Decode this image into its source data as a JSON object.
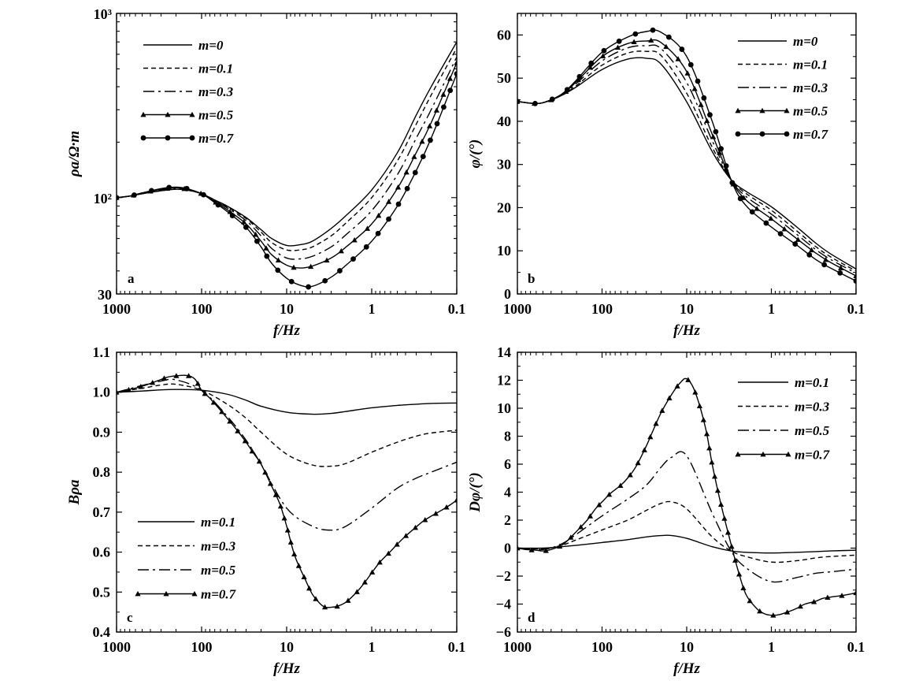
{
  "chart_data": [
    {
      "type": "line",
      "panel_label": "a",
      "xlabel": "f/Hz",
      "ylabel": "ρa/Ω·m",
      "x_scale": "log",
      "x_reversed": true,
      "xlim": [
        1000,
        0.1
      ],
      "y_scale": "log",
      "ylim": [
        30,
        1000
      ],
      "x_tick_labels": [
        "1000",
        "100",
        "10",
        "1",
        "0.1"
      ],
      "y_tick_labels": [
        "30",
        "10²",
        "10³"
      ],
      "legend_position": "top-left",
      "series": [
        {
          "name": "m=0",
          "style": "solid",
          "marker": "none",
          "x": [
            1000,
            700,
            500,
            300,
            200,
            150,
            100,
            70,
            50,
            30,
            20,
            15,
            10,
            7,
            5,
            3,
            2,
            1,
            0.5,
            0.3,
            0.2,
            0.1
          ],
          "y": [
            100,
            102,
            105,
            109,
            111,
            110,
            105,
            97,
            90,
            78,
            67,
            60,
            55,
            55.5,
            58,
            68,
            80,
            110,
            175,
            280,
            400,
            700
          ]
        },
        {
          "name": "m=0.1",
          "style": "dashed",
          "marker": "none",
          "x": [
            1000,
            700,
            500,
            300,
            200,
            150,
            100,
            70,
            50,
            30,
            20,
            15,
            10,
            7,
            5,
            3,
            2,
            1,
            0.5,
            0.3,
            0.2,
            0.1
          ],
          "y": [
            100,
            102,
            105,
            109,
            111,
            110,
            105,
            97,
            89,
            77,
            65,
            57,
            52,
            52,
            54,
            62,
            73,
            100,
            158,
            250,
            360,
            650
          ]
        },
        {
          "name": "m=0.3",
          "style": "dashdot",
          "marker": "none",
          "x": [
            1000,
            700,
            500,
            300,
            200,
            150,
            100,
            70,
            50,
            30,
            20,
            15,
            10,
            7,
            5,
            3,
            2,
            1,
            0.5,
            0.3,
            0.2,
            0.1
          ],
          "y": [
            100,
            102,
            105,
            110,
            112,
            111,
            105,
            96,
            88,
            75,
            62,
            53,
            47,
            46.5,
            48,
            54,
            63,
            85,
            133,
            210,
            300,
            580
          ]
        },
        {
          "name": "m=0.5",
          "style": "solid",
          "marker": "triangle",
          "x": [
            1000,
            700,
            500,
            300,
            200,
            150,
            100,
            70,
            50,
            30,
            20,
            15,
            10,
            7,
            5,
            3,
            2,
            1,
            0.5,
            0.3,
            0.2,
            0.1
          ],
          "y": [
            100,
            102,
            106,
            111,
            113,
            111,
            105,
            95,
            86,
            72,
            58,
            49,
            43,
            41.5,
            42.5,
            47,
            54,
            72,
            112,
            175,
            255,
            540
          ]
        },
        {
          "name": "m=0.7",
          "style": "solid",
          "marker": "circle",
          "x": [
            1000,
            700,
            500,
            300,
            200,
            150,
            100,
            70,
            50,
            30,
            20,
            15,
            10,
            7,
            5,
            3,
            2,
            1,
            0.5,
            0.3,
            0.2,
            0.1
          ],
          "y": [
            100,
            102,
            106,
            112,
            114,
            112,
            105,
            94,
            84,
            69,
            54,
            44,
            36.5,
            33.5,
            33,
            37,
            43,
            58,
            90,
            140,
            210,
            470
          ]
        }
      ]
    },
    {
      "type": "line",
      "panel_label": "b",
      "xlabel": "f/Hz",
      "ylabel": "φ/(°)",
      "x_scale": "log",
      "x_reversed": true,
      "xlim": [
        1000,
        0.1
      ],
      "ylim": [
        0,
        65
      ],
      "x_tick_labels": [
        "1000",
        "100",
        "10",
        "1",
        "0.1"
      ],
      "y_ticks": [
        0,
        10,
        20,
        30,
        40,
        50,
        60
      ],
      "legend_position": "top-right",
      "series": [
        {
          "name": "m=0",
          "style": "solid",
          "marker": "none",
          "x": [
            1000,
            700,
            500,
            300,
            200,
            100,
            50,
            30,
            20,
            10,
            5,
            3,
            2,
            1,
            0.5,
            0.3,
            0.2,
            0.1
          ],
          "y": [
            44.6,
            44.2,
            44.3,
            46.0,
            48.0,
            52.0,
            54.4,
            54.6,
            53.2,
            44.5,
            33.0,
            26.5,
            23.8,
            20.2,
            15.5,
            11.8,
            9.3,
            5.8
          ]
        },
        {
          "name": "m=0.1",
          "style": "dashed",
          "marker": "none",
          "x": [
            1000,
            700,
            500,
            300,
            200,
            100,
            50,
            30,
            20,
            10,
            5,
            3,
            2,
            1,
            0.5,
            0.3,
            0.2,
            0.1
          ],
          "y": [
            44.6,
            44.2,
            44.3,
            46.0,
            48.3,
            53.0,
            55.8,
            56.2,
            55.2,
            46.5,
            34.0,
            26.5,
            23.3,
            19.4,
            14.6,
            11.0,
            8.6,
            5.3
          ]
        },
        {
          "name": "m=0.3",
          "style": "dashdot",
          "marker": "none",
          "x": [
            1000,
            700,
            500,
            300,
            200,
            100,
            50,
            30,
            20,
            10,
            5,
            3,
            2,
            1,
            0.5,
            0.3,
            0.2,
            0.1
          ],
          "y": [
            44.6,
            44.2,
            44.3,
            46.1,
            48.8,
            54.0,
            57.0,
            57.5,
            56.8,
            49.0,
            35.5,
            26.5,
            22.6,
            18.5,
            13.8,
            10.3,
            8.0,
            4.8
          ]
        },
        {
          "name": "m=0.5",
          "style": "solid",
          "marker": "triangle",
          "x": [
            1000,
            700,
            500,
            300,
            200,
            100,
            50,
            30,
            20,
            10,
            5,
            3,
            2,
            1,
            0.5,
            0.3,
            0.2,
            0.1
          ],
          "y": [
            44.6,
            44.2,
            44.3,
            46.2,
            49.2,
            55.0,
            58.0,
            58.6,
            58.2,
            51.5,
            37.0,
            26.5,
            21.8,
            17.4,
            12.8,
            9.5,
            7.3,
            4.2
          ]
        },
        {
          "name": "m=0.7",
          "style": "solid",
          "marker": "circle",
          "x": [
            1000,
            700,
            500,
            300,
            200,
            100,
            50,
            30,
            20,
            10,
            5,
            3,
            2,
            1,
            0.5,
            0.3,
            0.2,
            0.1
          ],
          "y": [
            44.6,
            44.2,
            44.3,
            46.3,
            49.6,
            56.0,
            59.5,
            60.8,
            60.6,
            55.0,
            40.0,
            26.5,
            20.5,
            15.5,
            11.3,
            8.0,
            6.0,
            3.0
          ]
        }
      ]
    },
    {
      "type": "line",
      "panel_label": "c",
      "xlabel": "f/Hz",
      "ylabel": "Bρa",
      "x_scale": "log",
      "x_reversed": true,
      "xlim": [
        1000,
        0.1
      ],
      "ylim": [
        0.4,
        1.1
      ],
      "x_tick_labels": [
        "1000",
        "100",
        "10",
        "1",
        "0.1"
      ],
      "y_ticks": [
        0.4,
        0.5,
        0.6,
        0.7,
        0.8,
        0.9,
        1.0,
        1.1
      ],
      "legend_position": "bottom-left",
      "series": [
        {
          "name": "m=0.1",
          "style": "solid",
          "marker": "none",
          "x": [
            1000,
            500,
            300,
            200,
            100,
            50,
            30,
            20,
            10,
            5,
            3,
            2,
            1,
            0.5,
            0.3,
            0.2,
            0.1
          ],
          "y": [
            1.0,
            1.003,
            1.006,
            1.007,
            1.005,
            0.995,
            0.98,
            0.965,
            0.95,
            0.945,
            0.947,
            0.952,
            0.961,
            0.967,
            0.97,
            0.972,
            0.973
          ]
        },
        {
          "name": "m=0.3",
          "style": "dashed",
          "marker": "none",
          "x": [
            1000,
            500,
            300,
            200,
            100,
            50,
            30,
            20,
            10,
            5,
            3,
            2,
            1,
            0.5,
            0.3,
            0.2,
            0.1
          ],
          "y": [
            1.0,
            1.01,
            1.018,
            1.02,
            1.005,
            0.97,
            0.935,
            0.9,
            0.845,
            0.818,
            0.815,
            0.822,
            0.85,
            0.875,
            0.89,
            0.898,
            0.905
          ]
        },
        {
          "name": "m=0.5",
          "style": "dashdot",
          "marker": "none",
          "x": [
            1000,
            500,
            300,
            200,
            100,
            50,
            30,
            20,
            10,
            5,
            3,
            2,
            1,
            0.5,
            0.3,
            0.2,
            0.1
          ],
          "y": [
            1.0,
            1.017,
            1.028,
            1.031,
            1.005,
            0.94,
            0.88,
            0.82,
            0.71,
            0.665,
            0.655,
            0.665,
            0.71,
            0.76,
            0.785,
            0.8,
            0.825
          ]
        },
        {
          "name": "m=0.7",
          "style": "solid",
          "marker": "triangle",
          "x": [
            1000,
            700,
            500,
            400,
            300,
            250,
            200,
            150,
            120,
            100,
            80,
            60,
            50,
            40,
            30,
            25,
            20,
            15,
            12,
            10,
            8,
            6,
            5,
            4,
            3.5,
            3,
            2.5,
            2,
            1.5,
            1.2,
            1,
            0.8,
            0.6,
            0.5,
            0.4,
            0.3,
            0.25,
            0.2,
            0.15,
            0.12,
            0.1
          ],
          "y": [
            1.0,
            1.007,
            1.015,
            1.022,
            1.032,
            1.038,
            1.041,
            1.042,
            1.033,
            1.005,
            0.985,
            0.955,
            0.935,
            0.91,
            0.875,
            0.85,
            0.82,
            0.765,
            0.72,
            0.665,
            0.59,
            0.53,
            0.495,
            0.47,
            0.462,
            0.462,
            0.465,
            0.475,
            0.5,
            0.525,
            0.548,
            0.575,
            0.602,
            0.62,
            0.64,
            0.663,
            0.677,
            0.69,
            0.705,
            0.718,
            0.73
          ]
        }
      ]
    },
    {
      "type": "line",
      "panel_label": "d",
      "xlabel": "f/Hz",
      "ylabel": "Dφ/(°)",
      "x_scale": "log",
      "x_reversed": true,
      "xlim": [
        1000,
        0.1
      ],
      "ylim": [
        -6,
        14
      ],
      "x_tick_labels": [
        "1000",
        "100",
        "10",
        "1",
        "0.1"
      ],
      "y_ticks": [
        -6,
        -4,
        -2,
        0,
        2,
        4,
        6,
        8,
        10,
        12,
        14
      ],
      "legend_position": "top-right",
      "series": [
        {
          "name": "m=0.1",
          "style": "solid",
          "marker": "none",
          "x": [
            1000,
            500,
            300,
            200,
            100,
            50,
            30,
            20,
            15,
            10,
            5,
            3,
            2,
            1,
            0.5,
            0.3,
            0.2,
            0.1
          ],
          "y": [
            0.0,
            0.0,
            0.1,
            0.2,
            0.4,
            0.6,
            0.8,
            0.9,
            0.9,
            0.7,
            0.1,
            -0.2,
            -0.3,
            -0.35,
            -0.3,
            -0.25,
            -0.2,
            -0.15
          ]
        },
        {
          "name": "m=0.3",
          "style": "dashed",
          "marker": "none",
          "x": [
            1000,
            500,
            300,
            200,
            100,
            50,
            30,
            20,
            15,
            10,
            5,
            3,
            2,
            1,
            0.5,
            0.3,
            0.2,
            0.1
          ],
          "y": [
            0.0,
            -0.05,
            0.2,
            0.6,
            1.3,
            2.0,
            2.7,
            3.2,
            3.3,
            2.8,
            0.8,
            -0.2,
            -0.6,
            -1.0,
            -0.9,
            -0.7,
            -0.6,
            -0.5
          ]
        },
        {
          "name": "m=0.5",
          "style": "dashdot",
          "marker": "none",
          "x": [
            1000,
            500,
            300,
            200,
            100,
            50,
            30,
            20,
            15,
            10,
            5,
            3,
            2,
            1,
            0.5,
            0.3,
            0.2,
            0.1
          ],
          "y": [
            0.0,
            -0.1,
            0.3,
            1.0,
            2.3,
            3.5,
            4.5,
            5.8,
            6.5,
            6.6,
            2.5,
            -0.2,
            -1.4,
            -2.4,
            -2.1,
            -1.8,
            -1.7,
            -1.5
          ]
        },
        {
          "name": "m=0.7",
          "style": "solid",
          "marker": "triangle",
          "x": [
            1000,
            800,
            600,
            500,
            400,
            300,
            250,
            200,
            150,
            120,
            100,
            80,
            60,
            50,
            40,
            30,
            25,
            20,
            15,
            12,
            10,
            8,
            6,
            5,
            4,
            3,
            2.5,
            2,
            1.5,
            1.2,
            1,
            0.8,
            0.6,
            0.5,
            0.4,
            0.3,
            0.25,
            0.2,
            0.15,
            0.12,
            0.1
          ],
          "y": [
            0.0,
            -0.1,
            -0.15,
            -0.2,
            -0.1,
            0.2,
            0.6,
            1.2,
            2.0,
            2.8,
            3.3,
            3.9,
            4.5,
            5.0,
            5.8,
            7.3,
            8.4,
            9.7,
            11.0,
            11.8,
            12.1,
            11.2,
            8.6,
            6.0,
            3.3,
            0.3,
            -1.5,
            -3.3,
            -4.3,
            -4.7,
            -4.8,
            -4.75,
            -4.5,
            -4.3,
            -4.0,
            -3.8,
            -3.6,
            -3.5,
            -3.4,
            -3.3,
            -3.2
          ]
        }
      ]
    }
  ]
}
